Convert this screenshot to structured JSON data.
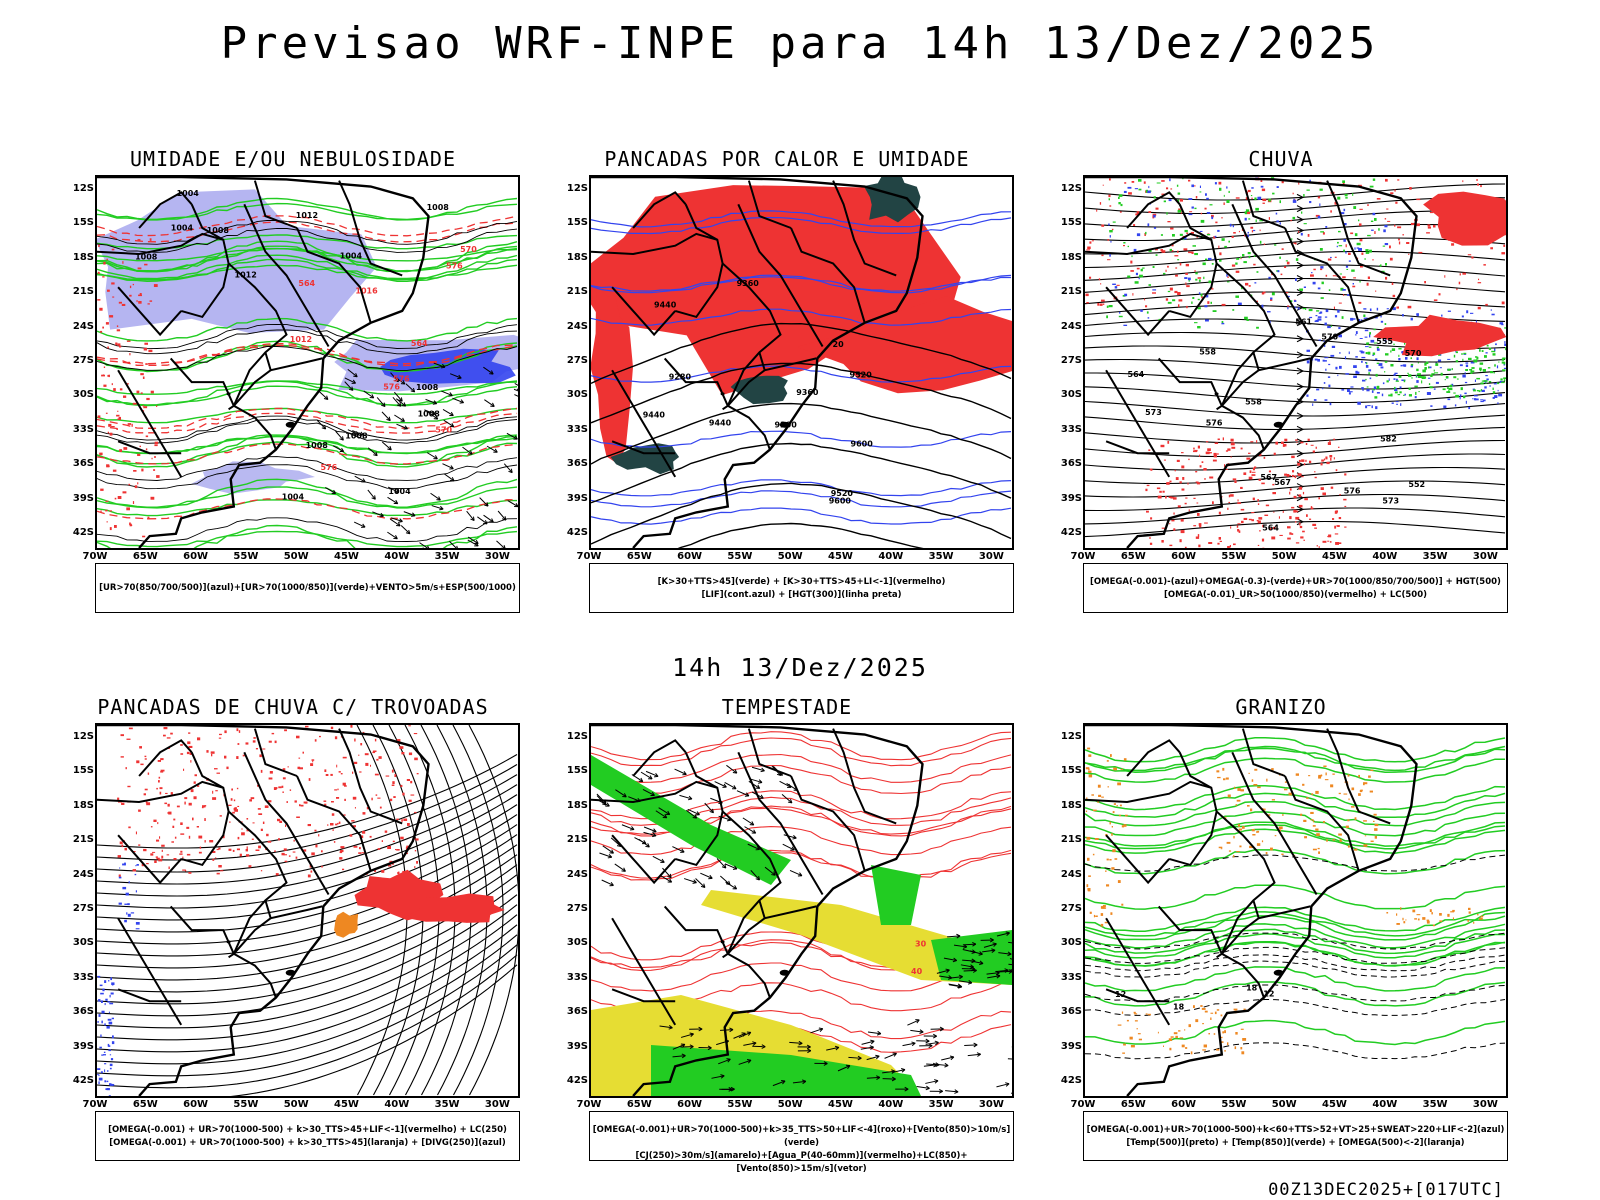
{
  "title": "Previsao WRF-INPE  para 14h 13/Dez/2025",
  "mid_title": "14h 13/Dez/2025",
  "footer": "00Z13DEC2025+[017UTC]",
  "lat_labels": [
    "12S",
    "15S",
    "18S",
    "21S",
    "24S",
    "27S",
    "30S",
    "33S",
    "36S",
    "39S",
    "42S"
  ],
  "lon_labels": [
    "70W",
    "65W",
    "60W",
    "55W",
    "50W",
    "45W",
    "40W",
    "35W",
    "30W"
  ],
  "colors": {
    "blue": "#3344ee",
    "lightblue": "#a8a8ee",
    "green": "#22cc22",
    "red": "#ee3333",
    "orange": "#ee8822",
    "yellow": "#e6dd33",
    "darkteal": "#224444",
    "black": "#000000"
  },
  "panels": [
    {
      "title": "UMIDADE E/OU NEBULOSIDADE",
      "legend": [
        "[UR>70(850/700/500)](azul)+[UR>70(1000/850)](verde)+VENTO>5m/s+ESP(500/1000)"
      ],
      "contour_labels": [
        "1008",
        "1008",
        "1004",
        "1008",
        "1008",
        "1004",
        "1008",
        "1012",
        "1004",
        "1008",
        "1004",
        "1004",
        "1012",
        "1008",
        "576",
        "576",
        "570",
        "564",
        "570",
        "576",
        "564",
        "1016",
        "1012",
        "576"
      ]
    },
    {
      "title": "PANCADAS POR CALOR E UMIDADE",
      "legend": [
        "[K>30+TTS>45](verde) + [K>30+TTS>45+LI<-1](vermelho)",
        "[LIF](cont.azul) + [HGT(300)](linha preta)"
      ],
      "contour_labels": [
        "9600",
        "9520",
        "9440",
        "9520",
        "9600",
        "9440",
        "9440",
        "9360",
        "9360",
        "9280",
        "9200",
        "20"
      ]
    },
    {
      "title": "CHUVA",
      "legend": [
        "[OMEGA(-0.001)-(azul)+OMEGA(-0.3)-(verde)+UR>70(1000/850/700/500)] + HGT(500)",
        "[OMEGA(-0.01)_UR>50(1000/850)(vermelho) + LC(500)"
      ],
      "contour_labels": [
        "582",
        "576",
        "573",
        "570",
        "567",
        "564",
        "561",
        "558",
        "555",
        "552",
        "570",
        "567",
        "564",
        "576",
        "573",
        "558"
      ]
    },
    {
      "title": "PANCADAS DE CHUVA C/ TROVOADAS",
      "legend": [
        "[OMEGA(-0.001) + UR>70(1000-500) + k>30_TTS>45+LIF<-1](vermelho) + LC(250)",
        "[OMEGA(-0.001) + UR>70(1000-500) + k>30_TTS>45](laranja) + [DIVG(250)](azul)"
      ],
      "contour_labels": []
    },
    {
      "title": "TEMPESTADE",
      "legend": [
        "[OMEGA(-0.001)+UR>70(1000-500)+k>35_TTS>50+LIF<-4](roxo)+[Vento(850)>10m/s](verde)",
        "[CJ(250)>30m/s](amarelo)+[Agua_P(40-60mm)](vermelho)+LC(850)+[Vento(850)>15m/s](vetor)"
      ],
      "contour_labels": [
        "40",
        "30"
      ]
    },
    {
      "title": "GRANIZO",
      "legend": [
        "[OMEGA(-0.001)+UR>70(1000-500)+k<60+TTS>52+VT>25+SWEAT>220+LIF<-2](azul)",
        "[Temp(500)](preto) + [Temp(850)](verde) + [OMEGA(500)<-2](laranja)"
      ],
      "contour_labels": [
        "12",
        "12",
        "18",
        "18"
      ]
    }
  ]
}
